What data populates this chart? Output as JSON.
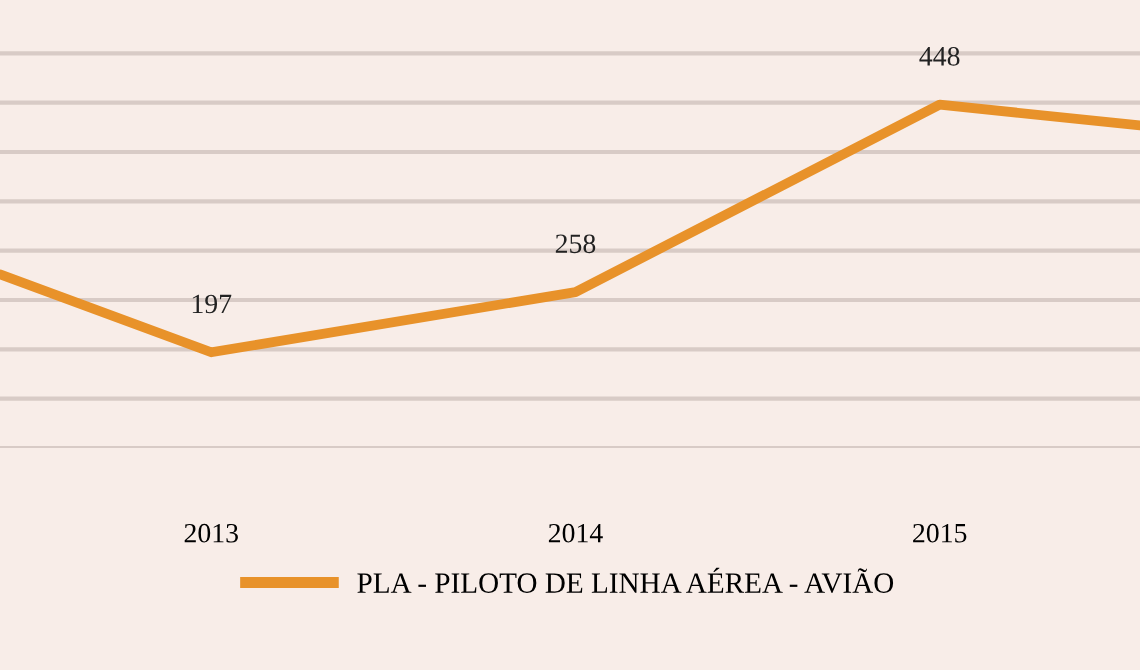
{
  "chart_data": {
    "type": "line",
    "x": [
      2012.42,
      2013,
      2014,
      2015,
      2015.55
    ],
    "xlim": [
      2012.42,
      2015.55
    ],
    "xticks": [
      2013,
      2014,
      2015
    ],
    "ylim": [
      100,
      550
    ],
    "yticks": [
      {
        "value": 100,
        "label": null
      },
      {
        "value": 150,
        "label": null
      },
      {
        "value": 200,
        "label": null
      },
      {
        "value": 250,
        "label": null
      },
      {
        "value": 300,
        "label": null
      },
      {
        "value": 350,
        "label": null
      },
      {
        "value": 400,
        "label": null
      },
      {
        "value": 450,
        "label": null
      },
      {
        "value": 500,
        "label": null
      }
    ],
    "tick_labels": "x",
    "grid": "y",
    "legend": "bottom",
    "marker": "none",
    "line_style": "solid",
    "series": [
      {
        "name": "PLA - PILOTO DE LINHA AÉREA - AVIÃO",
        "color": "#e8922a",
        "values": [
          276,
          197,
          258,
          448,
          427
        ],
        "value_labels": [
          null,
          "197",
          "258",
          "448",
          null
        ]
      }
    ]
  }
}
